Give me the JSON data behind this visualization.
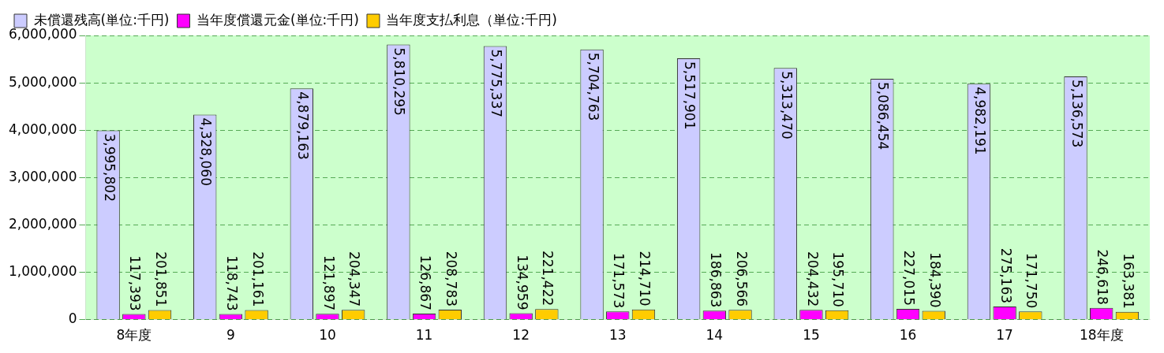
{
  "chart_data": {
    "type": "bar",
    "categories": [
      "8年度",
      "9",
      "10",
      "11",
      "12",
      "13",
      "14",
      "15",
      "16",
      "17",
      "18年度"
    ],
    "series": [
      {
        "name": "未償還残高(単位:千円)",
        "color": "#ccccff",
        "values": [
          3995802,
          4328060,
          4879163,
          5810295,
          5775337,
          5704763,
          5517901,
          5313470,
          5086454,
          4982191,
          5136573
        ],
        "value_labels": [
          "3,995,802",
          "4,328,060",
          "4,879,163",
          "5,810,295",
          "5,775,337",
          "5,704,763",
          "5,517,901",
          "5,313,470",
          "5,086,454",
          "4,982,191",
          "5,136,573"
        ]
      },
      {
        "name": "当年度償還元金(単位:千円)",
        "color": "#ff00ff",
        "values": [
          117393,
          118743,
          121897,
          126867,
          134959,
          171573,
          186863,
          204432,
          227015,
          275163,
          246618
        ],
        "value_labels": [
          "117,393",
          "118,743",
          "121,897",
          "126,867",
          "134,959",
          "171,573",
          "186,863",
          "204,432",
          "227,015",
          "275,163",
          "246,618"
        ]
      },
      {
        "name": "当年度支払利息（単位:千円)",
        "color": "#ffcc00",
        "values": [
          201851,
          201161,
          204347,
          208783,
          221422,
          214710,
          206566,
          195710,
          184390,
          171750,
          163381
        ],
        "value_labels": [
          "201,851",
          "201,161",
          "204,347",
          "208,783",
          "221,422",
          "214,710",
          "206,566",
          "195,710",
          "184,390",
          "171,750",
          "163,381"
        ]
      }
    ],
    "ylim": [
      0,
      6000000
    ],
    "yticks": [
      0,
      {
        "value": 1000000,
        "label": "1,000,000"
      },
      {
        "value": 2000000,
        "label": "2,000,000"
      },
      {
        "value": 3000000,
        "label": "3,000,000"
      },
      {
        "value": 4000000,
        "label": "4,000,000"
      },
      {
        "value": 5000000,
        "label": "5,000,000"
      },
      {
        "value": 6000000,
        "label": "6,000,000"
      }
    ],
    "grid": "y",
    "legend": "top left"
  }
}
